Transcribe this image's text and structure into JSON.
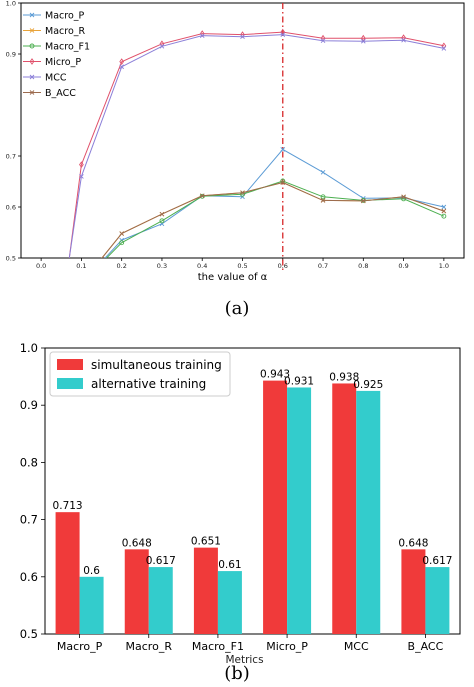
{
  "chart_data": [
    {
      "type": "line",
      "xlabel": "the value of α",
      "x": [
        0.0,
        0.1,
        0.2,
        0.3,
        0.4,
        0.5,
        0.6,
        0.7,
        0.8,
        0.9,
        1.0
      ],
      "xticklabels": [
        "0.0",
        "0.1",
        "0.2",
        "0.3",
        "0.4",
        "0.5",
        "0.6",
        "0.7",
        "0.8",
        "0.9",
        "1.0"
      ],
      "yticklabels": [
        "0.5",
        "0.6",
        "0.7",
        "0.9",
        "1.0"
      ],
      "ylim": [
        0.5,
        1.0
      ],
      "xlim": [
        -0.05,
        1.05
      ],
      "vline_x": 0.6,
      "legend_position": "top-left",
      "colors": {
        "vline": "#d62728"
      },
      "series": [
        {
          "name": "Macro_P",
          "color": "#5b9bd5",
          "marker": "x",
          "x": [
            0.07,
            0.1,
            0.2,
            0.3,
            0.4,
            0.5,
            0.6,
            0.7,
            0.8,
            0.9,
            1.0
          ],
          "values": [
            0.5,
            0.45,
            0.535,
            0.567,
            0.622,
            0.62,
            0.713,
            0.668,
            0.617,
            0.618,
            0.6
          ]
        },
        {
          "name": "Macro_R",
          "color": "#e8a33a",
          "marker": "x",
          "x": [
            0.07,
            0.1,
            0.2,
            0.3,
            0.4,
            0.5,
            0.6,
            0.7,
            0.8,
            0.9,
            1.0
          ],
          "values": [
            0.5,
            0.45,
            0.548,
            0.586,
            0.622,
            0.628,
            0.648,
            0.613,
            0.612,
            0.62,
            0.592
          ]
        },
        {
          "name": "Macro_F1",
          "color": "#4caf50",
          "marker": "o",
          "x": [
            0.07,
            0.1,
            0.2,
            0.3,
            0.4,
            0.5,
            0.6,
            0.7,
            0.8,
            0.9,
            1.0
          ],
          "values": [
            0.5,
            0.45,
            0.53,
            0.573,
            0.621,
            0.625,
            0.651,
            0.62,
            0.613,
            0.616,
            0.582
          ]
        },
        {
          "name": "Micro_P",
          "color": "#e0506a",
          "marker": "d",
          "x": [
            0.0,
            0.07,
            0.1,
            0.2,
            0.3,
            0.4,
            0.5,
            0.6,
            0.7,
            0.8,
            0.9,
            1.0
          ],
          "values": [
            0.35,
            0.5,
            0.683,
            0.885,
            0.92,
            0.94,
            0.938,
            0.943,
            0.931,
            0.931,
            0.932,
            0.916
          ]
        },
        {
          "name": "MCC",
          "color": "#8b7fd8",
          "marker": "x",
          "x": [
            0.0,
            0.07,
            0.1,
            0.2,
            0.3,
            0.4,
            0.5,
            0.6,
            0.7,
            0.8,
            0.9,
            1.0
          ],
          "values": [
            0.35,
            0.5,
            0.66,
            0.875,
            0.915,
            0.936,
            0.934,
            0.938,
            0.926,
            0.925,
            0.927,
            0.911
          ]
        },
        {
          "name": "B_ACC",
          "color": "#9c6b4e",
          "marker": "x",
          "x": [
            0.07,
            0.1,
            0.2,
            0.3,
            0.4,
            0.5,
            0.6,
            0.7,
            0.8,
            0.9,
            1.0
          ],
          "values": [
            0.5,
            0.45,
            0.548,
            0.586,
            0.622,
            0.628,
            0.648,
            0.613,
            0.612,
            0.62,
            0.592
          ]
        }
      ],
      "caption": "(a)"
    },
    {
      "type": "bar",
      "xlabel": "Metrics",
      "categories": [
        "Macro_P",
        "Macro_R",
        "Macro_F1",
        "Micro_P",
        "MCC",
        "B_ACC"
      ],
      "ylim": [
        0.5,
        1.0
      ],
      "yticklabels": [
        "0.5",
        "0.6",
        "0.7",
        "0.8",
        "0.9",
        "1.0"
      ],
      "legend_position": "top-left",
      "series": [
        {
          "name": "simultaneous training",
          "color": "#f03a3a",
          "values": [
            0.713,
            0.648,
            0.651,
            0.943,
            0.938,
            0.648
          ],
          "labels": [
            "0.713",
            "0.648",
            "0.651",
            "0.943",
            "0.938",
            "0.648"
          ]
        },
        {
          "name": "alternative training",
          "color": "#33cccc",
          "values": [
            0.6,
            0.617,
            0.61,
            0.931,
            0.925,
            0.617
          ],
          "labels": [
            "0.6",
            "0.617",
            "0.61",
            "0.931",
            "0.925",
            "0.617"
          ]
        }
      ],
      "caption": "(b)"
    }
  ]
}
